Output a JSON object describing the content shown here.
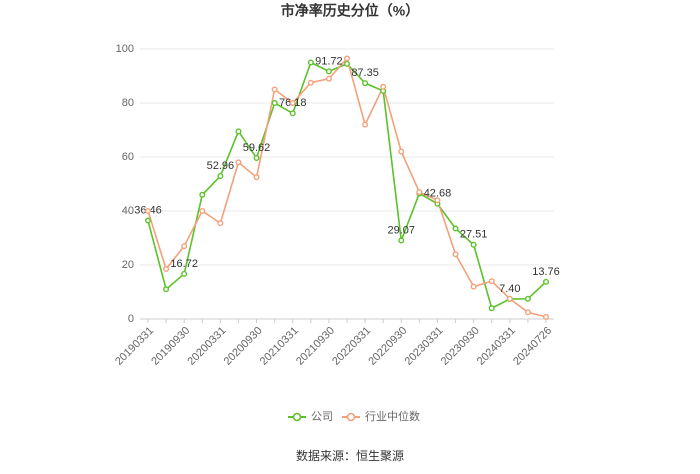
{
  "chart_data": {
    "type": "line",
    "title": "市净率历史分位（%）",
    "categories": [
      "20190331",
      null,
      "20190930",
      null,
      "20200331",
      null,
      "20200930",
      null,
      "20210331",
      null,
      "20210930",
      null,
      "20220331",
      null,
      "20220930",
      null,
      "20230331",
      null,
      "20230930",
      null,
      "20240331",
      null,
      "20240726"
    ],
    "series": [
      {
        "name": "公司",
        "color": "#5bc22a",
        "values": [
          36.46,
          11,
          16.72,
          46,
          52.96,
          69.5,
          59.62,
          80,
          76.18,
          95,
          91.72,
          94.5,
          87.35,
          84.5,
          29.07,
          46.5,
          42.68,
          33.5,
          27.51,
          4,
          7.4,
          7.5,
          13.76
        ],
        "value_labels": [
          "36.46",
          null,
          "16.72",
          null,
          "52.96",
          null,
          "59.62",
          null,
          "76.18",
          null,
          "91.72",
          null,
          "87.35",
          null,
          "29.07",
          null,
          "42.68",
          null,
          "27.51",
          null,
          "7.40",
          null,
          "13.76"
        ]
      },
      {
        "name": "行业中位数",
        "color": "#f4a07a",
        "values": [
          40,
          18.5,
          27,
          40,
          35.5,
          58,
          52.5,
          85,
          80,
          87.5,
          89,
          96.5,
          72,
          86,
          62,
          47,
          44,
          24,
          12,
          14,
          7.5,
          2.5,
          0.8
        ]
      }
    ],
    "ylim": [
      0,
      100
    ],
    "yticks": [
      0,
      20,
      40,
      60,
      80,
      100
    ],
    "grid": true,
    "source": "数据来源：恒生聚源"
  }
}
